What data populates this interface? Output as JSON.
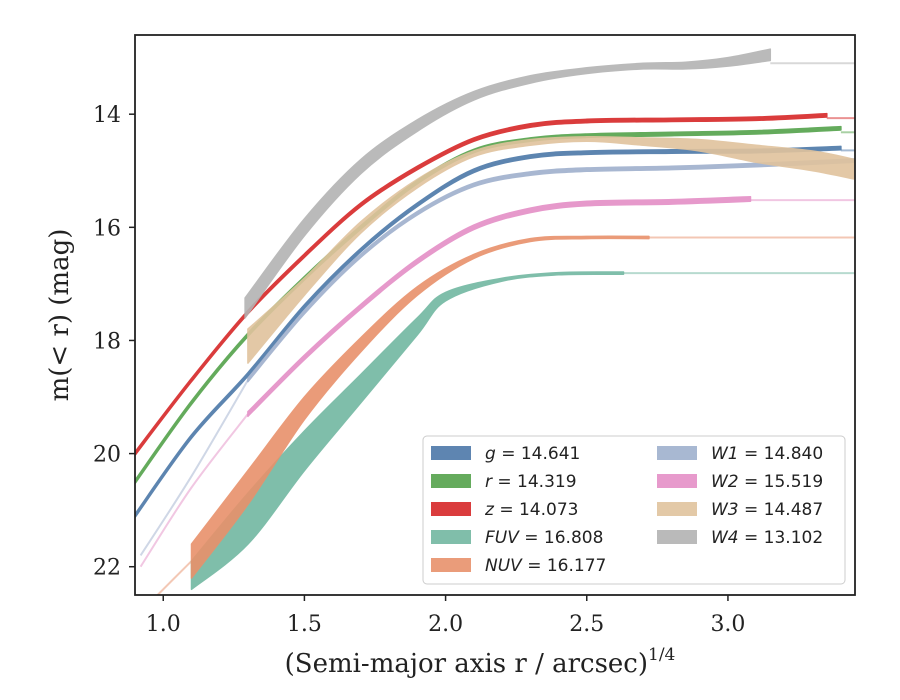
{
  "chart_data": {
    "type": "line",
    "xlabel": "(Semi-major axis r / arcsec)",
    "xlabel_exponent": "1/4",
    "ylabel": "m(< r) (mag)",
    "xlim": [
      0.9,
      3.45
    ],
    "ylim": [
      22.5,
      12.6
    ],
    "y_inverted": true,
    "xticks": [
      1.0,
      1.5,
      2.0,
      2.5,
      3.0
    ],
    "xtick_labels": [
      "1.0",
      "1.5",
      "2.0",
      "2.5",
      "3.0"
    ],
    "yticks": [
      14,
      16,
      18,
      20,
      22
    ],
    "ytick_labels": [
      "14",
      "16",
      "18",
      "20",
      "22"
    ],
    "grid": false,
    "legend_placement": "lower-right",
    "series": [
      {
        "name": "g",
        "legend_value": "14.641",
        "color": "#4c78a8",
        "band_width": 0.06,
        "points": [
          [
            0.9,
            21.1
          ],
          [
            1.1,
            19.7
          ],
          [
            1.3,
            18.6
          ],
          [
            1.5,
            17.4
          ],
          [
            1.7,
            16.4
          ],
          [
            1.9,
            15.6
          ],
          [
            2.1,
            15.0
          ],
          [
            2.3,
            14.75
          ],
          [
            2.5,
            14.68
          ],
          [
            2.8,
            14.66
          ],
          [
            3.1,
            14.65
          ],
          [
            3.4,
            14.6
          ]
        ],
        "extension": {
          "from": 3.4,
          "to": 3.45,
          "value": 14.64
        }
      },
      {
        "name": "r",
        "legend_value": "14.319",
        "color": "#54a24b",
        "band_width": 0.06,
        "points": [
          [
            0.9,
            20.5
          ],
          [
            1.1,
            19.1
          ],
          [
            1.3,
            17.9
          ],
          [
            1.5,
            16.9
          ],
          [
            1.7,
            16.0
          ],
          [
            1.9,
            15.2
          ],
          [
            2.1,
            14.65
          ],
          [
            2.3,
            14.45
          ],
          [
            2.5,
            14.38
          ],
          [
            2.8,
            14.35
          ],
          [
            3.1,
            14.32
          ],
          [
            3.4,
            14.25
          ]
        ],
        "extension": {
          "from": 3.4,
          "to": 3.45,
          "value": 14.32
        }
      },
      {
        "name": "z",
        "legend_value": "14.073",
        "color": "#d62728",
        "band_width": 0.06,
        "points": [
          [
            0.9,
            20.0
          ],
          [
            1.1,
            18.7
          ],
          [
            1.3,
            17.5
          ],
          [
            1.5,
            16.5
          ],
          [
            1.7,
            15.6
          ],
          [
            1.9,
            14.95
          ],
          [
            2.1,
            14.45
          ],
          [
            2.3,
            14.2
          ],
          [
            2.5,
            14.12
          ],
          [
            2.8,
            14.1
          ],
          [
            3.1,
            14.08
          ],
          [
            3.35,
            14.02
          ]
        ],
        "extension": {
          "from": 3.35,
          "to": 3.45,
          "value": 14.07
        }
      },
      {
        "name": "FUV",
        "legend_value": "16.808",
        "color": "#72b7a1",
        "band": [
          [
            1.1,
            22.4,
            21.9
          ],
          [
            1.3,
            21.6,
            20.7
          ],
          [
            1.5,
            20.3,
            19.6
          ],
          [
            1.7,
            19.1,
            18.6
          ],
          [
            1.9,
            17.9,
            17.6
          ],
          [
            2.0,
            17.3,
            17.15
          ],
          [
            2.2,
            16.95,
            16.9
          ],
          [
            2.4,
            16.84,
            16.8
          ],
          [
            2.63,
            16.83,
            16.79
          ]
        ],
        "extension": {
          "from": 2.63,
          "to": 3.45,
          "value": 16.81
        }
      },
      {
        "name": "NUV",
        "legend_value": "16.177",
        "color": "#e8916b",
        "band": [
          [
            1.1,
            22.2,
            21.6
          ],
          [
            1.3,
            20.9,
            20.3
          ],
          [
            1.5,
            19.4,
            19.0
          ],
          [
            1.7,
            18.2,
            17.95
          ],
          [
            1.9,
            17.2,
            17.05
          ],
          [
            2.1,
            16.55,
            16.48
          ],
          [
            2.3,
            16.25,
            16.2
          ],
          [
            2.5,
            16.2,
            16.16
          ],
          [
            2.72,
            16.2,
            16.16
          ]
        ],
        "extension": {
          "from": 2.72,
          "to": 3.45,
          "value": 16.18
        },
        "pre_extension": [
          [
            0.98,
            22.5
          ],
          [
            1.1,
            21.9
          ]
        ]
      },
      {
        "name": "W1",
        "legend_value": "14.840",
        "color": "#9fb0cd",
        "band_width": 0.06,
        "points": [
          [
            1.3,
            18.7
          ],
          [
            1.5,
            17.5
          ],
          [
            1.7,
            16.5
          ],
          [
            1.9,
            15.75
          ],
          [
            2.1,
            15.25
          ],
          [
            2.3,
            15.05
          ],
          [
            2.5,
            14.98
          ],
          [
            2.8,
            14.95
          ],
          [
            3.1,
            14.9
          ],
          [
            3.45,
            14.82
          ]
        ],
        "pre_extension": [
          [
            0.92,
            21.8
          ],
          [
            1.1,
            20.4
          ],
          [
            1.3,
            18.7
          ]
        ]
      },
      {
        "name": "W2",
        "legend_value": "15.519",
        "color": "#e48fc6",
        "band_width": 0.08,
        "points": [
          [
            1.3,
            19.3
          ],
          [
            1.5,
            18.3
          ],
          [
            1.7,
            17.4
          ],
          [
            1.9,
            16.6
          ],
          [
            2.1,
            16.0
          ],
          [
            2.3,
            15.7
          ],
          [
            2.5,
            15.58
          ],
          [
            2.8,
            15.55
          ],
          [
            3.08,
            15.5
          ]
        ],
        "extension": {
          "from": 3.08,
          "to": 3.45,
          "value": 15.52
        },
        "pre_extension": [
          [
            0.92,
            22.0
          ],
          [
            1.1,
            20.6
          ],
          [
            1.3,
            19.3
          ]
        ]
      },
      {
        "name": "W3",
        "legend_value": "14.487",
        "color": "#e0c39d",
        "band": [
          [
            1.3,
            18.4,
            17.8
          ],
          [
            1.5,
            17.2,
            16.9
          ],
          [
            1.7,
            16.1,
            15.9
          ],
          [
            1.9,
            15.3,
            15.15
          ],
          [
            2.1,
            14.75,
            14.65
          ],
          [
            2.3,
            14.55,
            14.45
          ],
          [
            2.5,
            14.48,
            14.4
          ],
          [
            2.7,
            14.55,
            14.42
          ],
          [
            2.9,
            14.65,
            14.45
          ],
          [
            3.1,
            14.85,
            14.55
          ],
          [
            3.3,
            15.0,
            14.65
          ],
          [
            3.45,
            15.15,
            14.8
          ]
        ],
        "extension": {
          "from": 3.45,
          "to": 3.45,
          "value": 14.49
        }
      },
      {
        "name": "W4",
        "legend_value": "13.102",
        "color": "#b3b3b3",
        "band": [
          [
            1.29,
            17.6,
            17.25
          ],
          [
            1.5,
            16.15,
            15.85
          ],
          [
            1.7,
            15.05,
            14.8
          ],
          [
            1.9,
            14.3,
            14.1
          ],
          [
            2.1,
            13.75,
            13.6
          ],
          [
            2.3,
            13.45,
            13.32
          ],
          [
            2.5,
            13.28,
            13.18
          ],
          [
            2.7,
            13.2,
            13.1
          ],
          [
            2.85,
            13.2,
            13.08
          ],
          [
            3.0,
            13.15,
            13.0
          ],
          [
            3.15,
            13.05,
            12.85
          ]
        ],
        "extension": {
          "from": 3.15,
          "to": 3.45,
          "value": 13.1
        }
      }
    ],
    "legend_columns": [
      [
        "g",
        "r",
        "z",
        "FUV",
        "NUV"
      ],
      [
        "W1",
        "W2",
        "W3",
        "W4"
      ]
    ]
  }
}
